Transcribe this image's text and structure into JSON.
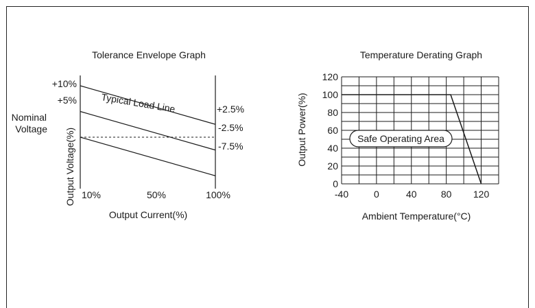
{
  "colors": {
    "line": "#1a1a1a",
    "background": "#ffffff"
  },
  "chart_data": [
    {
      "type": "line",
      "title": "Tolerance Envelope Graph",
      "xlabel": "Output Current(%)",
      "ylabel": "Output Voltage(%)",
      "x_ticks": [
        "10%",
        "50%",
        "100%"
      ],
      "y_ticks_left": [
        "+10%",
        "+5%"
      ],
      "nominal_label": [
        "Nominal",
        "Voltage"
      ],
      "right_labels": [
        "+2.5%",
        "-2.5%",
        "-7.5%"
      ],
      "xlim": [
        10,
        100
      ],
      "ylim": [
        -10,
        12
      ],
      "series": [
        {
          "x": [
            10,
            100
          ],
          "y": [
            10,
            2.5
          ]
        },
        {
          "x": [
            10,
            100
          ],
          "y": [
            5,
            -2.5
          ]
        },
        {
          "x": [
            10,
            100
          ],
          "y": [
            0,
            -7.5
          ]
        }
      ],
      "nominal_line": {
        "y": 0,
        "style": "dashed"
      },
      "annotation": "Typical Load Line"
    },
    {
      "type": "line",
      "title": "Temperature Derating Graph",
      "xlabel": "Ambient Temperature(°C)",
      "ylabel": "Output Power(%)",
      "x_ticks": [
        -40,
        0,
        40,
        80,
        120
      ],
      "y_ticks": [
        0,
        20,
        40,
        60,
        80,
        100,
        120
      ],
      "xlim": [
        -40,
        140
      ],
      "ylim": [
        0,
        120
      ],
      "grid": true,
      "series": [
        {
          "x": [
            -40,
            85,
            120
          ],
          "y": [
            100,
            100,
            0
          ]
        }
      ],
      "annotation": "Safe Operating Area"
    }
  ]
}
